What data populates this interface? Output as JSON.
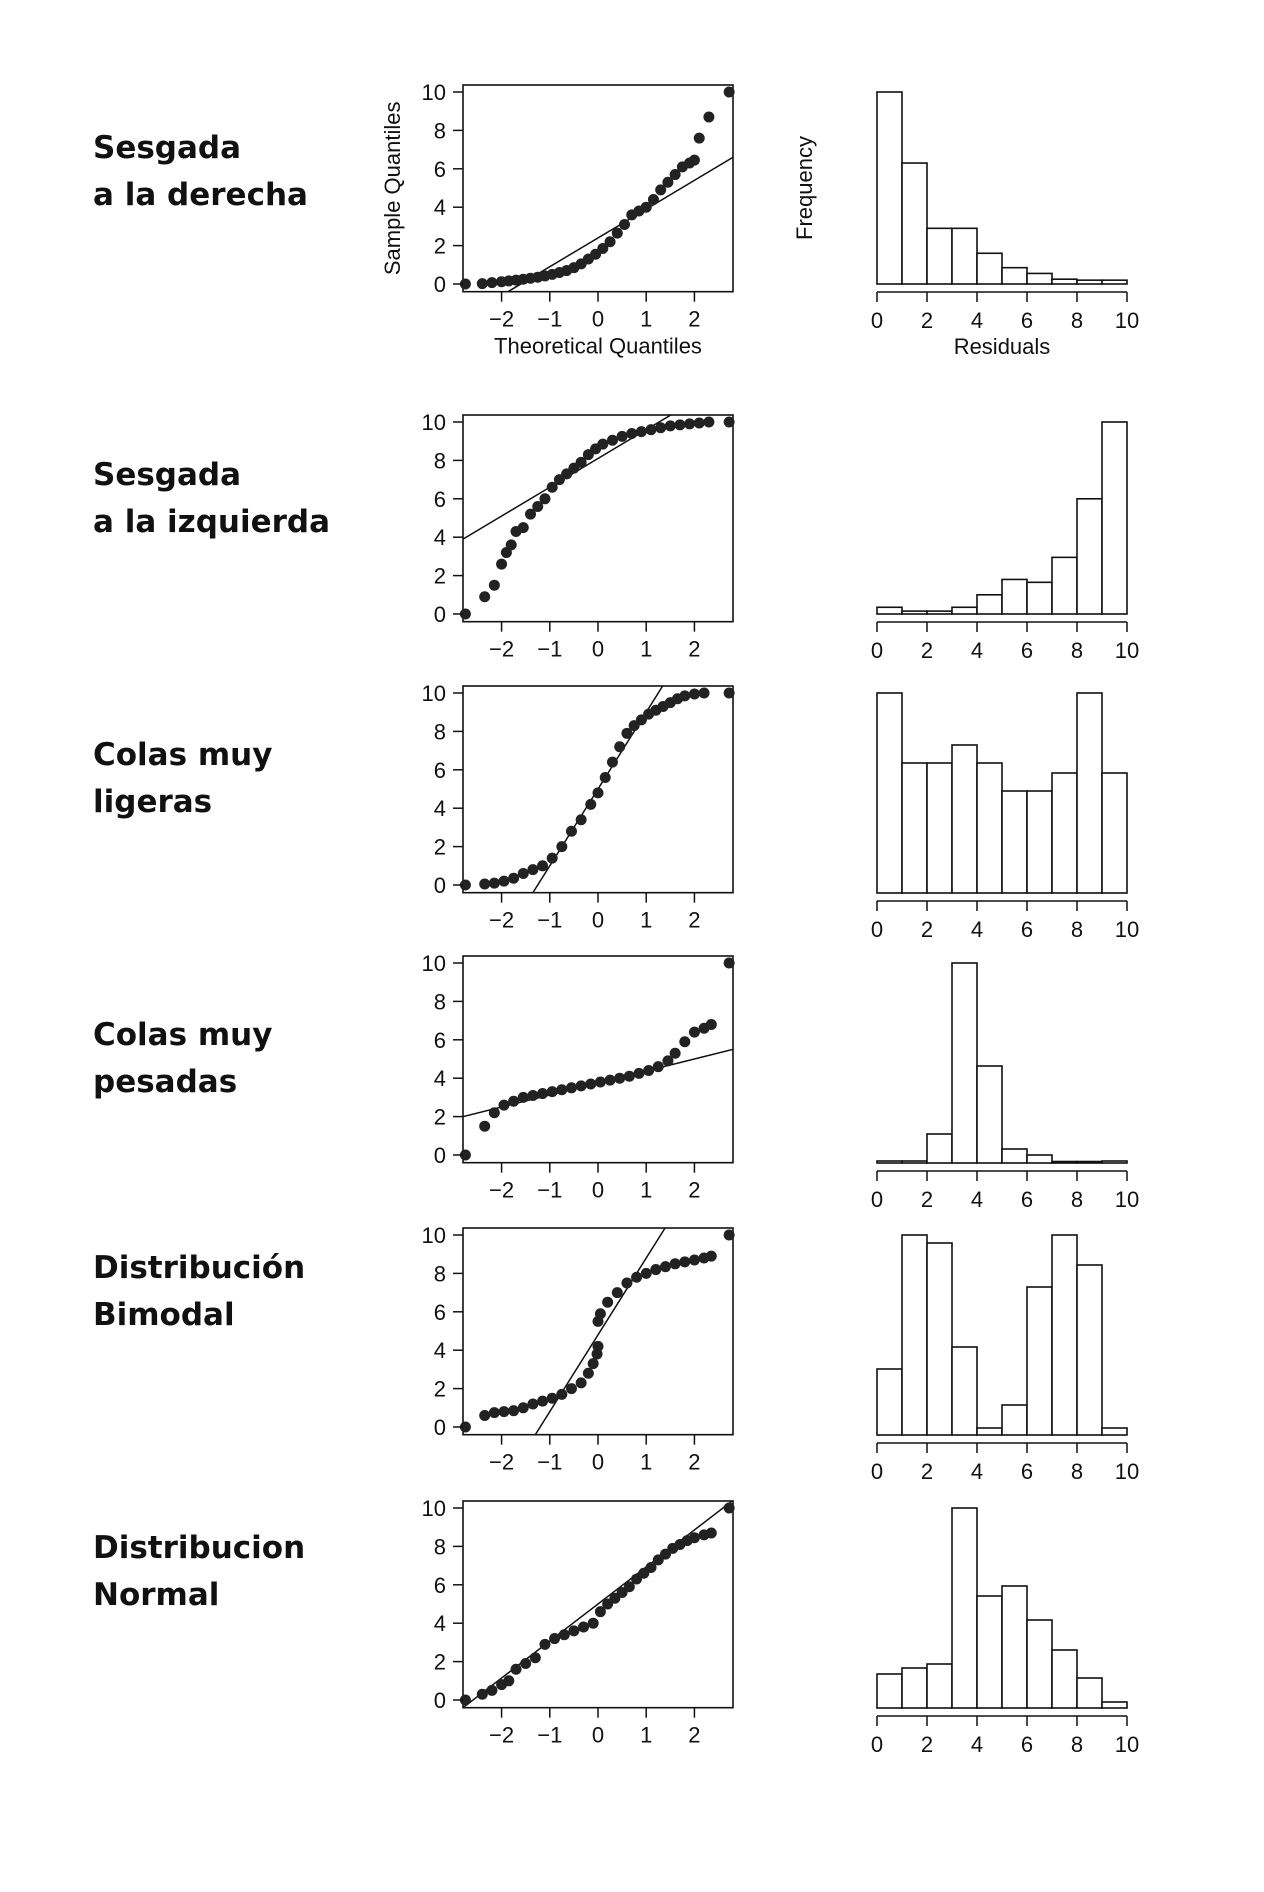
{
  "rows": [
    {
      "label_lines": [
        "Sesgada",
        "a la derecha"
      ]
    },
    {
      "label_lines": [
        "Sesgada",
        "a la izquierda"
      ]
    },
    {
      "label_lines": [
        "Colas muy",
        "ligeras"
      ]
    },
    {
      "label_lines": [
        "Colas muy",
        "pesadas"
      ]
    },
    {
      "label_lines": [
        "Distribución",
        "Bimodal"
      ]
    },
    {
      "label_lines": [
        "Distribucion",
        "Normal"
      ]
    }
  ],
  "chart_data": [
    {
      "type": "scatter",
      "title": "",
      "xlabel": "Theoretical Quantiles",
      "ylabel": "Sample Quantiles",
      "xlim": [
        -2.8,
        2.8
      ],
      "ylim": [
        -0.4,
        10.4
      ],
      "xticks": [
        "−2",
        "−1",
        "0",
        "1",
        "2"
      ],
      "yticks": [
        "0",
        "2",
        "4",
        "6",
        "8",
        "10"
      ],
      "points": [
        [
          -2.75,
          0.0
        ],
        [
          -2.4,
          0.02
        ],
        [
          -2.2,
          0.07
        ],
        [
          -2.0,
          0.12
        ],
        [
          -1.85,
          0.16
        ],
        [
          -1.7,
          0.2
        ],
        [
          -1.55,
          0.25
        ],
        [
          -1.4,
          0.3
        ],
        [
          -1.25,
          0.35
        ],
        [
          -1.1,
          0.42
        ],
        [
          -0.95,
          0.5
        ],
        [
          -0.8,
          0.6
        ],
        [
          -0.65,
          0.7
        ],
        [
          -0.5,
          0.85
        ],
        [
          -0.35,
          1.05
        ],
        [
          -0.2,
          1.3
        ],
        [
          -0.05,
          1.55
        ],
        [
          0.1,
          1.85
        ],
        [
          0.25,
          2.2
        ],
        [
          0.4,
          2.65
        ],
        [
          0.55,
          3.1
        ],
        [
          0.7,
          3.6
        ],
        [
          0.85,
          3.8
        ],
        [
          1.0,
          4.0
        ],
        [
          1.15,
          4.4
        ],
        [
          1.3,
          4.9
        ],
        [
          1.45,
          5.3
        ],
        [
          1.6,
          5.7
        ],
        [
          1.75,
          6.1
        ],
        [
          1.9,
          6.3
        ],
        [
          2.0,
          6.45
        ],
        [
          2.1,
          7.6
        ],
        [
          2.3,
          8.7
        ],
        [
          2.72,
          10.0
        ]
      ],
      "fit_line": [
        [
          -2.8,
          -1.8
        ],
        [
          2.8,
          6.6
        ]
      ]
    },
    {
      "type": "bar",
      "title": "",
      "xlabel": "Residuals",
      "ylabel": "Frequency",
      "bin_edges": [
        0,
        1,
        2,
        3,
        4,
        5,
        6,
        7,
        8,
        9,
        10
      ],
      "values": [
        10.0,
        6.3,
        2.9,
        2.9,
        1.6,
        0.85,
        0.55,
        0.25,
        0.2,
        0.2
      ],
      "xticks": [
        "0",
        "2",
        "4",
        "6",
        "8",
        "10"
      ]
    },
    {
      "type": "scatter",
      "xlim": [
        -2.8,
        2.8
      ],
      "ylim": [
        -0.4,
        10.4
      ],
      "xticks": [
        "−2",
        "−1",
        "0",
        "1",
        "2"
      ],
      "yticks": [
        "0",
        "2",
        "4",
        "6",
        "8",
        "10"
      ],
      "points": [
        [
          -2.75,
          0.0
        ],
        [
          -2.35,
          0.9
        ],
        [
          -2.15,
          1.5
        ],
        [
          -2.0,
          2.6
        ],
        [
          -1.9,
          3.2
        ],
        [
          -1.8,
          3.6
        ],
        [
          -1.7,
          4.3
        ],
        [
          -1.55,
          4.5
        ],
        [
          -1.4,
          5.2
        ],
        [
          -1.25,
          5.6
        ],
        [
          -1.1,
          6.0
        ],
        [
          -0.95,
          6.6
        ],
        [
          -0.8,
          7.0
        ],
        [
          -0.65,
          7.3
        ],
        [
          -0.5,
          7.6
        ],
        [
          -0.35,
          7.9
        ],
        [
          -0.2,
          8.3
        ],
        [
          -0.05,
          8.6
        ],
        [
          0.1,
          8.85
        ],
        [
          0.3,
          9.05
        ],
        [
          0.5,
          9.25
        ],
        [
          0.7,
          9.4
        ],
        [
          0.9,
          9.5
        ],
        [
          1.1,
          9.6
        ],
        [
          1.3,
          9.7
        ],
        [
          1.5,
          9.8
        ],
        [
          1.7,
          9.85
        ],
        [
          1.9,
          9.9
        ],
        [
          2.1,
          9.95
        ],
        [
          2.3,
          10.0
        ],
        [
          2.72,
          10.0
        ]
      ],
      "fit_line": [
        [
          -2.8,
          3.9
        ],
        [
          2.8,
          12.3
        ]
      ]
    },
    {
      "type": "bar",
      "bin_edges": [
        0,
        1,
        2,
        3,
        4,
        5,
        6,
        7,
        8,
        9,
        10
      ],
      "values": [
        0.35,
        0.15,
        0.15,
        0.35,
        1.0,
        1.8,
        1.65,
        2.95,
        6.0,
        10.0
      ],
      "xticks": [
        "0",
        "2",
        "4",
        "6",
        "8",
        "10"
      ]
    },
    {
      "type": "scatter",
      "xlim": [
        -2.8,
        2.8
      ],
      "ylim": [
        -0.4,
        10.4
      ],
      "xticks": [
        "−2",
        "−1",
        "0",
        "1",
        "2"
      ],
      "yticks": [
        "0",
        "2",
        "4",
        "6",
        "8",
        "10"
      ],
      "points": [
        [
          -2.75,
          0.0
        ],
        [
          -2.35,
          0.05
        ],
        [
          -2.15,
          0.1
        ],
        [
          -1.95,
          0.2
        ],
        [
          -1.75,
          0.35
        ],
        [
          -1.55,
          0.6
        ],
        [
          -1.35,
          0.8
        ],
        [
          -1.15,
          1.0
        ],
        [
          -0.95,
          1.4
        ],
        [
          -0.75,
          2.0
        ],
        [
          -0.55,
          2.8
        ],
        [
          -0.35,
          3.4
        ],
        [
          -0.15,
          4.2
        ],
        [
          0.0,
          4.8
        ],
        [
          0.15,
          5.6
        ],
        [
          0.3,
          6.4
        ],
        [
          0.45,
          7.2
        ],
        [
          0.6,
          7.9
        ],
        [
          0.75,
          8.3
        ],
        [
          0.9,
          8.6
        ],
        [
          1.05,
          8.9
        ],
        [
          1.2,
          9.1
        ],
        [
          1.35,
          9.3
        ],
        [
          1.5,
          9.5
        ],
        [
          1.65,
          9.7
        ],
        [
          1.8,
          9.85
        ],
        [
          2.0,
          9.95
        ],
        [
          2.2,
          10.0
        ],
        [
          2.72,
          10.0
        ]
      ],
      "fit_line": [
        [
          -1.35,
          -0.4
        ],
        [
          1.35,
          10.4
        ]
      ]
    },
    {
      "type": "bar",
      "bin_edges": [
        0,
        1,
        2,
        3,
        4,
        5,
        6,
        7,
        8,
        9,
        10
      ],
      "values": [
        10.0,
        6.5,
        6.5,
        7.4,
        6.5,
        5.1,
        5.1,
        6.0,
        10.0,
        6.0
      ],
      "xticks": [
        "0",
        "2",
        "4",
        "6",
        "8",
        "10"
      ]
    },
    {
      "type": "scatter",
      "xlim": [
        -2.8,
        2.8
      ],
      "ylim": [
        -0.4,
        10.4
      ],
      "xticks": [
        "−2",
        "−1",
        "0",
        "1",
        "2"
      ],
      "yticks": [
        "0",
        "2",
        "4",
        "6",
        "8",
        "10"
      ],
      "points": [
        [
          -2.75,
          0.0
        ],
        [
          -2.35,
          1.5
        ],
        [
          -2.15,
          2.2
        ],
        [
          -1.95,
          2.6
        ],
        [
          -1.75,
          2.8
        ],
        [
          -1.55,
          3.0
        ],
        [
          -1.35,
          3.1
        ],
        [
          -1.15,
          3.2
        ],
        [
          -0.95,
          3.3
        ],
        [
          -0.75,
          3.4
        ],
        [
          -0.55,
          3.5
        ],
        [
          -0.35,
          3.6
        ],
        [
          -0.15,
          3.7
        ],
        [
          0.05,
          3.8
        ],
        [
          0.25,
          3.9
        ],
        [
          0.45,
          4.0
        ],
        [
          0.65,
          4.1
        ],
        [
          0.85,
          4.25
        ],
        [
          1.05,
          4.4
        ],
        [
          1.25,
          4.6
        ],
        [
          1.45,
          4.9
        ],
        [
          1.6,
          5.3
        ],
        [
          1.8,
          5.9
        ],
        [
          2.0,
          6.4
        ],
        [
          2.2,
          6.6
        ],
        [
          2.35,
          6.8
        ],
        [
          2.72,
          10.0
        ]
      ],
      "fit_line": [
        [
          -2.8,
          2.0
        ],
        [
          2.8,
          5.5
        ]
      ]
    },
    {
      "type": "bar",
      "bin_edges": [
        0,
        1,
        2,
        3,
        4,
        5,
        6,
        7,
        8,
        9,
        10
      ],
      "values": [
        0.1,
        0.1,
        1.45,
        10.0,
        4.85,
        0.7,
        0.4,
        0.0,
        0.0,
        0.1
      ],
      "xticks": [
        "0",
        "2",
        "4",
        "6",
        "8",
        "10"
      ]
    },
    {
      "type": "scatter",
      "xlim": [
        -2.8,
        2.8
      ],
      "ylim": [
        -0.4,
        10.4
      ],
      "xticks": [
        "−2",
        "−1",
        "0",
        "1",
        "2"
      ],
      "yticks": [
        "0",
        "2",
        "4",
        "6",
        "8",
        "10"
      ],
      "points": [
        [
          -2.75,
          0.0
        ],
        [
          -2.35,
          0.6
        ],
        [
          -2.15,
          0.75
        ],
        [
          -1.95,
          0.8
        ],
        [
          -1.75,
          0.85
        ],
        [
          -1.55,
          1.0
        ],
        [
          -1.35,
          1.2
        ],
        [
          -1.15,
          1.35
        ],
        [
          -0.95,
          1.5
        ],
        [
          -0.75,
          1.7
        ],
        [
          -0.55,
          2.0
        ],
        [
          -0.35,
          2.3
        ],
        [
          -0.2,
          2.8
        ],
        [
          -0.1,
          3.3
        ],
        [
          -0.02,
          3.8
        ],
        [
          0.0,
          4.2
        ],
        [
          0.0,
          5.5
        ],
        [
          0.05,
          5.9
        ],
        [
          0.2,
          6.5
        ],
        [
          0.4,
          7.0
        ],
        [
          0.6,
          7.5
        ],
        [
          0.8,
          7.8
        ],
        [
          1.0,
          8.0
        ],
        [
          1.2,
          8.2
        ],
        [
          1.4,
          8.35
        ],
        [
          1.6,
          8.5
        ],
        [
          1.8,
          8.6
        ],
        [
          2.0,
          8.7
        ],
        [
          2.2,
          8.8
        ],
        [
          2.35,
          8.9
        ],
        [
          2.72,
          10.0
        ]
      ],
      "fit_line": [
        [
          -1.3,
          -0.4
        ],
        [
          1.4,
          10.4
        ]
      ]
    },
    {
      "type": "bar",
      "bin_edges": [
        0,
        1,
        2,
        3,
        4,
        5,
        6,
        7,
        8,
        9,
        10
      ],
      "values": [
        3.3,
        10.0,
        9.6,
        4.4,
        0.35,
        1.5,
        7.4,
        10.0,
        8.5,
        0.35
      ],
      "xticks": [
        "0",
        "2",
        "4",
        "6",
        "8",
        "10"
      ]
    },
    {
      "type": "scatter",
      "xlim": [
        -2.8,
        2.8
      ],
      "ylim": [
        -0.4,
        10.4
      ],
      "xticks": [
        "−2",
        "−1",
        "0",
        "1",
        "2"
      ],
      "yticks": [
        "0",
        "2",
        "4",
        "6",
        "8",
        "10"
      ],
      "points": [
        [
          -2.75,
          0.0
        ],
        [
          -2.4,
          0.3
        ],
        [
          -2.2,
          0.5
        ],
        [
          -2.0,
          0.8
        ],
        [
          -1.85,
          1.0
        ],
        [
          -1.7,
          1.6
        ],
        [
          -1.5,
          1.9
        ],
        [
          -1.3,
          2.2
        ],
        [
          -1.1,
          2.9
        ],
        [
          -0.9,
          3.2
        ],
        [
          -0.7,
          3.4
        ],
        [
          -0.5,
          3.6
        ],
        [
          -0.3,
          3.8
        ],
        [
          -0.1,
          4.0
        ],
        [
          0.05,
          4.6
        ],
        [
          0.2,
          5.0
        ],
        [
          0.35,
          5.3
        ],
        [
          0.5,
          5.6
        ],
        [
          0.65,
          5.9
        ],
        [
          0.8,
          6.3
        ],
        [
          0.95,
          6.6
        ],
        [
          1.1,
          6.9
        ],
        [
          1.25,
          7.3
        ],
        [
          1.4,
          7.6
        ],
        [
          1.55,
          7.9
        ],
        [
          1.7,
          8.1
        ],
        [
          1.85,
          8.3
        ],
        [
          2.0,
          8.45
        ],
        [
          2.2,
          8.6
        ],
        [
          2.35,
          8.7
        ],
        [
          2.72,
          10.0
        ]
      ],
      "fit_line": [
        [
          -2.8,
          -0.4
        ],
        [
          2.8,
          10.4
        ]
      ]
    },
    {
      "type": "bar",
      "bin_edges": [
        0,
        1,
        2,
        3,
        4,
        5,
        6,
        7,
        8,
        9,
        10
      ],
      "values": [
        1.7,
        2.0,
        2.2,
        10.0,
        5.6,
        6.1,
        4.4,
        2.9,
        1.5,
        0.3
      ],
      "xticks": [
        "0",
        "2",
        "4",
        "6",
        "8",
        "10"
      ]
    }
  ]
}
